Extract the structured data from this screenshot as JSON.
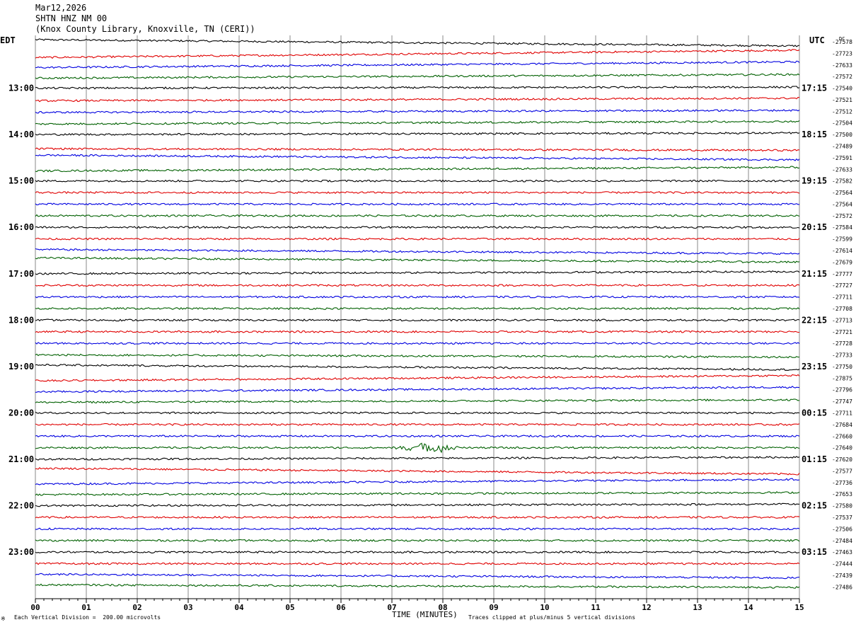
{
  "header": {
    "date": "Mar12,2026",
    "station": "SHTN HNZ NM 00",
    "location": "(Knox County Library, Knoxville, TN (CERI))"
  },
  "left_zone": "EDT",
  "right_zone": "UTC",
  "footer": {
    "scale_note": "Each Vertical Division =  200.00 microvolts",
    "clip_note": "Traces clipped at plus/minus 5 vertical divisions",
    "corner_mark": "※"
  },
  "chart_data": {
    "type": "line",
    "title": "",
    "xlabel": "TIME (MINUTES)",
    "ylabel": "",
    "xlim": [
      0,
      15
    ],
    "x_ticks": [
      "00",
      "01",
      "02",
      "03",
      "04",
      "05",
      "06",
      "07",
      "08",
      "09",
      "10",
      "11",
      "12",
      "13",
      "14",
      "15"
    ],
    "trace_colors": [
      "#000000",
      "#e00000",
      "#0000e0",
      "#006000"
    ],
    "left_time_labels": [
      {
        "row": 4,
        "label": "13:00"
      },
      {
        "row": 8,
        "label": "14:00"
      },
      {
        "row": 12,
        "label": "15:00"
      },
      {
        "row": 16,
        "label": "16:00"
      },
      {
        "row": 20,
        "label": "17:00"
      },
      {
        "row": 24,
        "label": "18:00"
      },
      {
        "row": 28,
        "label": "19:00"
      },
      {
        "row": 32,
        "label": "20:00"
      },
      {
        "row": 36,
        "label": "21:00"
      },
      {
        "row": 40,
        "label": "22:00"
      },
      {
        "row": 44,
        "label": "23:00"
      }
    ],
    "right_time_labels": [
      {
        "row": 4,
        "label": "17:15"
      },
      {
        "row": 8,
        "label": "18:15"
      },
      {
        "row": 12,
        "label": "19:15"
      },
      {
        "row": 16,
        "label": "20:15"
      },
      {
        "row": 20,
        "label": "21:15"
      },
      {
        "row": 24,
        "label": "22:15"
      },
      {
        "row": 28,
        "label": "23:15"
      },
      {
        "row": 32,
        "label": "00:15"
      },
      {
        "row": 36,
        "label": "01:15"
      },
      {
        "row": 40,
        "label": "02:15"
      },
      {
        "row": 44,
        "label": "03:15"
      }
    ],
    "dc_label": "DC",
    "trace_offsets": [
      "-27578",
      "-27723",
      "-27633",
      "-27572",
      "-27540",
      "-27521",
      "-27512",
      "-27504",
      "-27500",
      "-27489",
      "-27591",
      "-27633",
      "-27582",
      "-27564",
      "-27564",
      "-27572",
      "-27584",
      "-27599",
      "-27614",
      "-27679",
      "-27777",
      "-27727",
      "-27711",
      "-27708",
      "-27713",
      "-27721",
      "-27728",
      "-27733",
      "-27750",
      "-27875",
      "-27796",
      "-27747",
      "-27711",
      "-27684",
      "-27660",
      "-27640",
      "-27620",
      "-27577",
      "-27736",
      "-27653",
      "-27580",
      "-27537",
      "-27506",
      "-27484",
      "-27463",
      "-27444",
      "-27439",
      "-27486"
    ],
    "trace_drift_start": [
      0.4,
      -0.8,
      -0.5,
      -0.3,
      0,
      -0.2,
      -0.2,
      -0.2,
      0,
      -0.5,
      0.5,
      -0.3,
      0,
      0,
      0,
      0,
      0,
      0,
      0.2,
      0.8,
      0,
      0,
      0,
      0,
      0,
      0,
      0,
      0,
      0.3,
      -0.5,
      -0.4,
      -0.2,
      0,
      0,
      0,
      0,
      0,
      0.5,
      -0.3,
      -0.1,
      0,
      0,
      0,
      0,
      0,
      0,
      0.2,
      0.4
    ],
    "trace_drift_end": [
      -0.8,
      0.6,
      0.6,
      0.4,
      0.2,
      0.3,
      0.2,
      0.3,
      0.3,
      -0.8,
      -0.4,
      0.4,
      0,
      0,
      0,
      0,
      0,
      0,
      -0.6,
      0,
      0.4,
      0,
      0,
      0,
      0,
      0,
      0,
      -0.4,
      -0.6,
      0.5,
      0.5,
      0.3,
      0,
      0,
      0,
      0,
      0.4,
      -0.6,
      0.6,
      0.3,
      0.3,
      0,
      0,
      0,
      0,
      0,
      -0.5,
      -0.1
    ],
    "events": [
      {
        "trace": 35,
        "start_min": 7.0,
        "end_min": 8.4,
        "amplitude": 0.9
      }
    ]
  }
}
